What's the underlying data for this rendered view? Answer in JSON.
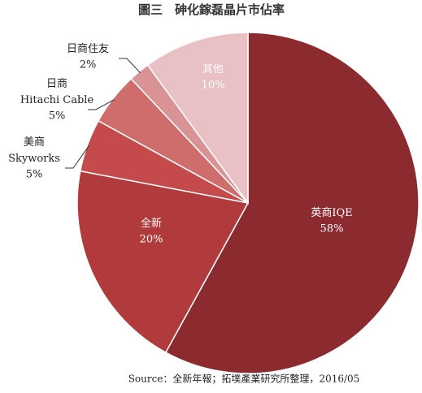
{
  "chart_data": {
    "type": "pie",
    "title": "圖三　砷化鎵磊晶片市佔率",
    "categories": [
      "英商IQE",
      "全新",
      "美商\nSkyworks",
      "日商\nHitachi Cable",
      "日商住友",
      "其他"
    ],
    "values": [
      58,
      20,
      5,
      5,
      2,
      10
    ],
    "value_labels": [
      "58%",
      "20%",
      "5%",
      "5%",
      "2%",
      "10%"
    ],
    "colors": [
      "#8c2b2f",
      "#b13a3d",
      "#c44a4b",
      "#cf6d6d",
      "#d99394",
      "#e9c0c4"
    ],
    "source": "Source：全新年報；拓墣產業研究所整理，2016/05"
  }
}
